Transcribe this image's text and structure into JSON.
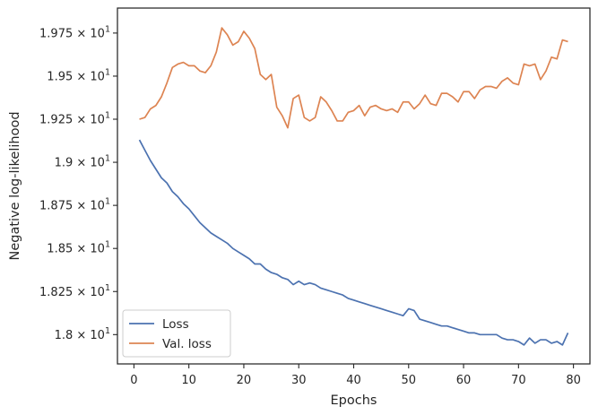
{
  "chart_data": {
    "type": "line",
    "xlabel": "Epochs",
    "ylabel": "Negative log-likelihood",
    "xlim": [
      -3,
      83
    ],
    "ylim": [
      17.83,
      19.895
    ],
    "x_ticks": [
      0,
      10,
      20,
      30,
      40,
      50,
      60,
      70,
      80
    ],
    "y_ticks": [
      {
        "value": 18.0,
        "mantissa": "1.8"
      },
      {
        "value": 18.25,
        "mantissa": "1.825"
      },
      {
        "value": 18.5,
        "mantissa": "1.85"
      },
      {
        "value": 18.75,
        "mantissa": "1.875"
      },
      {
        "value": 19.0,
        "mantissa": "1.9"
      },
      {
        "value": 19.25,
        "mantissa": "1.925"
      },
      {
        "value": 19.5,
        "mantissa": "1.95"
      },
      {
        "value": 19.75,
        "mantissa": "1.975"
      }
    ],
    "tick_exponent_base": "10",
    "tick_exponent": "1",
    "legend_position": "lower left",
    "x": [
      1,
      2,
      3,
      4,
      5,
      6,
      7,
      8,
      9,
      10,
      11,
      12,
      13,
      14,
      15,
      16,
      17,
      18,
      19,
      20,
      21,
      22,
      23,
      24,
      25,
      26,
      27,
      28,
      29,
      30,
      31,
      32,
      33,
      34,
      35,
      36,
      37,
      38,
      39,
      40,
      41,
      42,
      43,
      44,
      45,
      46,
      47,
      48,
      49,
      50,
      51,
      52,
      53,
      54,
      55,
      56,
      57,
      58,
      59,
      60,
      61,
      62,
      63,
      64,
      65,
      66,
      67,
      68,
      69,
      70,
      71,
      72,
      73,
      74,
      75,
      76,
      77,
      78,
      79
    ],
    "series": [
      {
        "name": "Loss",
        "color": "#4c72b0",
        "values": [
          19.13,
          19.07,
          19.01,
          18.96,
          18.91,
          18.88,
          18.83,
          18.8,
          18.76,
          18.73,
          18.69,
          18.65,
          18.62,
          18.59,
          18.57,
          18.55,
          18.53,
          18.5,
          18.48,
          18.46,
          18.44,
          18.41,
          18.41,
          18.38,
          18.36,
          18.35,
          18.33,
          18.32,
          18.29,
          18.31,
          18.29,
          18.3,
          18.29,
          18.27,
          18.26,
          18.25,
          18.24,
          18.23,
          18.21,
          18.2,
          18.19,
          18.18,
          18.17,
          18.16,
          18.15,
          18.14,
          18.13,
          18.12,
          18.11,
          18.15,
          18.14,
          18.09,
          18.08,
          18.07,
          18.06,
          18.05,
          18.05,
          18.04,
          18.03,
          18.02,
          18.01,
          18.01,
          18.0,
          18.0,
          18.0,
          18.0,
          17.98,
          17.97,
          17.97,
          17.96,
          17.94,
          17.98,
          17.95,
          17.97,
          17.97,
          17.95,
          17.96,
          17.94,
          18.01
        ]
      },
      {
        "name": "Val. loss",
        "color": "#dd8452",
        "values": [
          19.25,
          19.26,
          19.31,
          19.33,
          19.38,
          19.46,
          19.55,
          19.57,
          19.58,
          19.56,
          19.56,
          19.53,
          19.52,
          19.56,
          19.64,
          19.78,
          19.74,
          19.68,
          19.7,
          19.76,
          19.72,
          19.66,
          19.51,
          19.48,
          19.51,
          19.32,
          19.27,
          19.2,
          19.37,
          19.39,
          19.26,
          19.24,
          19.26,
          19.38,
          19.35,
          19.3,
          19.24,
          19.24,
          19.29,
          19.3,
          19.33,
          19.27,
          19.32,
          19.33,
          19.31,
          19.3,
          19.31,
          19.29,
          19.35,
          19.35,
          19.31,
          19.34,
          19.39,
          19.34,
          19.33,
          19.4,
          19.4,
          19.38,
          19.35,
          19.41,
          19.41,
          19.37,
          19.42,
          19.44,
          19.44,
          19.43,
          19.47,
          19.49,
          19.46,
          19.45,
          19.57,
          19.56,
          19.57,
          19.48,
          19.53,
          19.61,
          19.6,
          19.71,
          19.7
        ]
      }
    ]
  }
}
